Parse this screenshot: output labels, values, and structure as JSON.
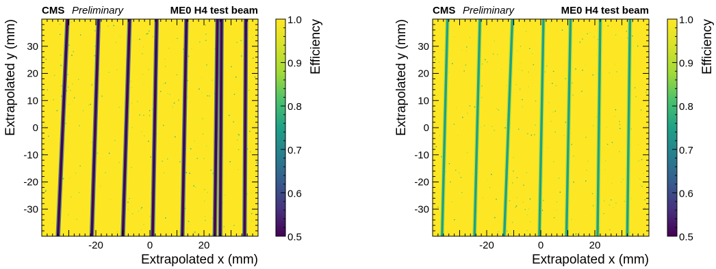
{
  "chart_data": [
    {
      "type": "heatmap",
      "header": {
        "experiment": "CMS",
        "status": "Preliminary",
        "label": "ME0 H4 test beam"
      },
      "xlabel": "Extrapolated x (mm)",
      "ylabel": "Extrapolated y (mm)",
      "colorbar_label": "Efficiency",
      "xlim": [
        -40,
        40
      ],
      "ylim": [
        -40,
        40
      ],
      "xticks": [
        -20,
        0,
        20
      ],
      "yticks": [
        -30,
        -20,
        -10,
        0,
        10,
        20,
        30
      ],
      "zlim": [
        0.5,
        1.0
      ],
      "zticks": [
        0.5,
        0.6,
        0.7,
        0.8,
        0.9,
        1.0
      ],
      "zticklabels": [
        "0.5",
        "0.6",
        "0.7",
        "0.8",
        "0.9",
        "1.0"
      ],
      "background_efficiency": 1.0,
      "gap_min_efficiency": 0.5,
      "gaps": [
        {
          "x_bottom": -34.0,
          "x_top": -30.5
        },
        {
          "x_bottom": -21.5,
          "x_top": -19.0
        },
        {
          "x_bottom": -10.0,
          "x_top": -7.5
        },
        {
          "x_bottom": 1.0,
          "x_top": 2.5
        },
        {
          "x_bottom": 12.0,
          "x_top": 13.5
        },
        {
          "x_bottom": 24.0,
          "x_top": 25.0
        },
        {
          "x_bottom": 26.0,
          "x_top": 26.5
        },
        {
          "x_bottom": 35.0,
          "x_top": 35.5
        }
      ]
    },
    {
      "type": "heatmap",
      "header": {
        "experiment": "CMS",
        "status": "Preliminary",
        "label": "ME0 H4 test beam"
      },
      "xlabel": "Extrapolated x (mm)",
      "ylabel": "Extrapolated y (mm)",
      "colorbar_label": "Efficiency",
      "xlim": [
        -40,
        40
      ],
      "ylim": [
        -40,
        40
      ],
      "xticks": [
        -20,
        0,
        20
      ],
      "yticks": [
        -30,
        -20,
        -10,
        0,
        10,
        20,
        30
      ],
      "zlim": [
        0.5,
        1.0
      ],
      "zticks": [
        0.5,
        0.6,
        0.7,
        0.8,
        0.9,
        1.0
      ],
      "zticklabels": [
        "0.5",
        "0.6",
        "0.7",
        "0.8",
        "0.9",
        "1.0"
      ],
      "background_efficiency": 1.0,
      "gap_min_efficiency": 0.75,
      "gaps": [
        {
          "x_bottom": -36.5,
          "x_top": -34.5
        },
        {
          "x_bottom": -24.5,
          "x_top": -22.5
        },
        {
          "x_bottom": -13.5,
          "x_top": -10.5
        },
        {
          "x_bottom": -0.5,
          "x_top": 1.0
        },
        {
          "x_bottom": 9.5,
          "x_top": 11.0
        },
        {
          "x_bottom": 21.0,
          "x_top": 22.0
        },
        {
          "x_bottom": 32.0,
          "x_top": 33.0
        }
      ]
    }
  ]
}
